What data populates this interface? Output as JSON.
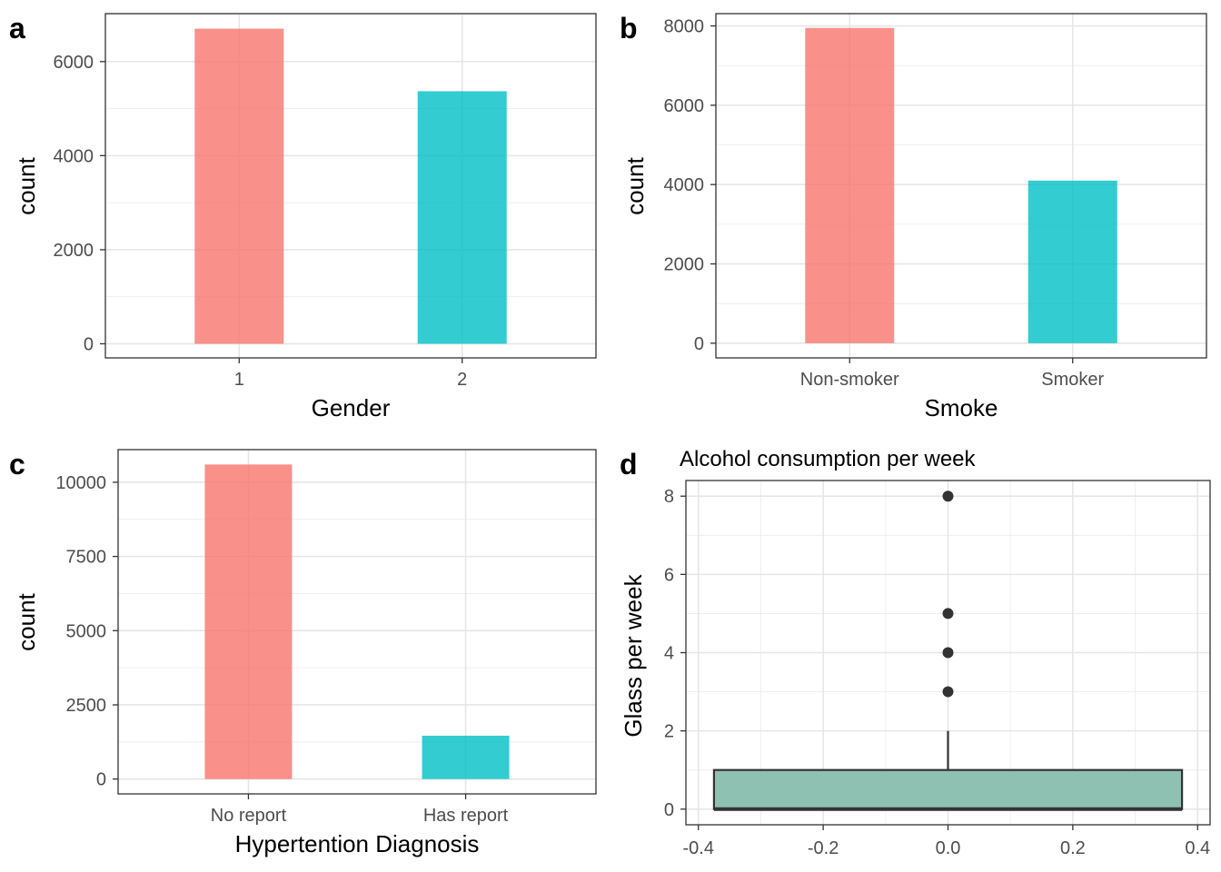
{
  "chart_data": [
    {
      "panel": "a",
      "type": "bar",
      "categories": [
        "1",
        "2"
      ],
      "values": [
        6700,
        5370
      ],
      "xlabel": "Gender",
      "ylabel": "count",
      "yticks": [
        0,
        2000,
        4000,
        6000
      ],
      "ytick_labels": [
        "0",
        "2000",
        "4000",
        "6000"
      ],
      "ylim": [
        -300,
        7020
      ],
      "colors": [
        "#F8766D",
        "#00BFC4"
      ],
      "grid": true
    },
    {
      "panel": "b",
      "type": "bar",
      "categories": [
        "Non-smoker",
        "Smoker"
      ],
      "values": [
        7950,
        4100
      ],
      "xlabel": "Smoke",
      "ylabel": "count",
      "yticks": [
        0,
        2000,
        4000,
        6000,
        8000
      ],
      "ytick_labels": [
        "0",
        "2000",
        "4000",
        "6000",
        "8000"
      ],
      "ylim": [
        -370,
        8310
      ],
      "colors": [
        "#F8766D",
        "#00BFC4"
      ],
      "grid": true
    },
    {
      "panel": "c",
      "type": "bar",
      "categories": [
        "No report",
        "Has report"
      ],
      "values": [
        10600,
        1460
      ],
      "xlabel": "Hypertention Diagnosis",
      "ylabel": "count",
      "yticks": [
        0,
        2500,
        5000,
        7500,
        10000
      ],
      "ytick_labels": [
        "0",
        "2500",
        "5000",
        "7500",
        "10000"
      ],
      "ylim": [
        -500,
        11100
      ],
      "colors": [
        "#F8766D",
        "#00BFC4"
      ],
      "grid": true
    },
    {
      "panel": "d",
      "type": "box",
      "title": "Alcohol consumption per week",
      "ylabel": "Glass per week",
      "xlim": [
        -0.42,
        0.42
      ],
      "ylim": [
        -0.4,
        8.4
      ],
      "xticks": [
        -0.4,
        -0.2,
        0.0,
        0.2,
        0.4
      ],
      "xtick_labels": [
        "-0.4",
        "-0.2",
        "0.0",
        "0.2",
        "0.4"
      ],
      "yticks": [
        0,
        2,
        4,
        6,
        8
      ],
      "ytick_labels": [
        "0",
        "2",
        "4",
        "6",
        "8"
      ],
      "box": {
        "x_min": -0.375,
        "x_max": 0.375,
        "q1": 0,
        "median": 0,
        "q3": 1,
        "whisker_low": 0,
        "whisker_high": 2
      },
      "outliers": [
        3,
        4,
        5,
        8
      ],
      "fill": "#8FC1B3",
      "grid": true
    }
  ]
}
